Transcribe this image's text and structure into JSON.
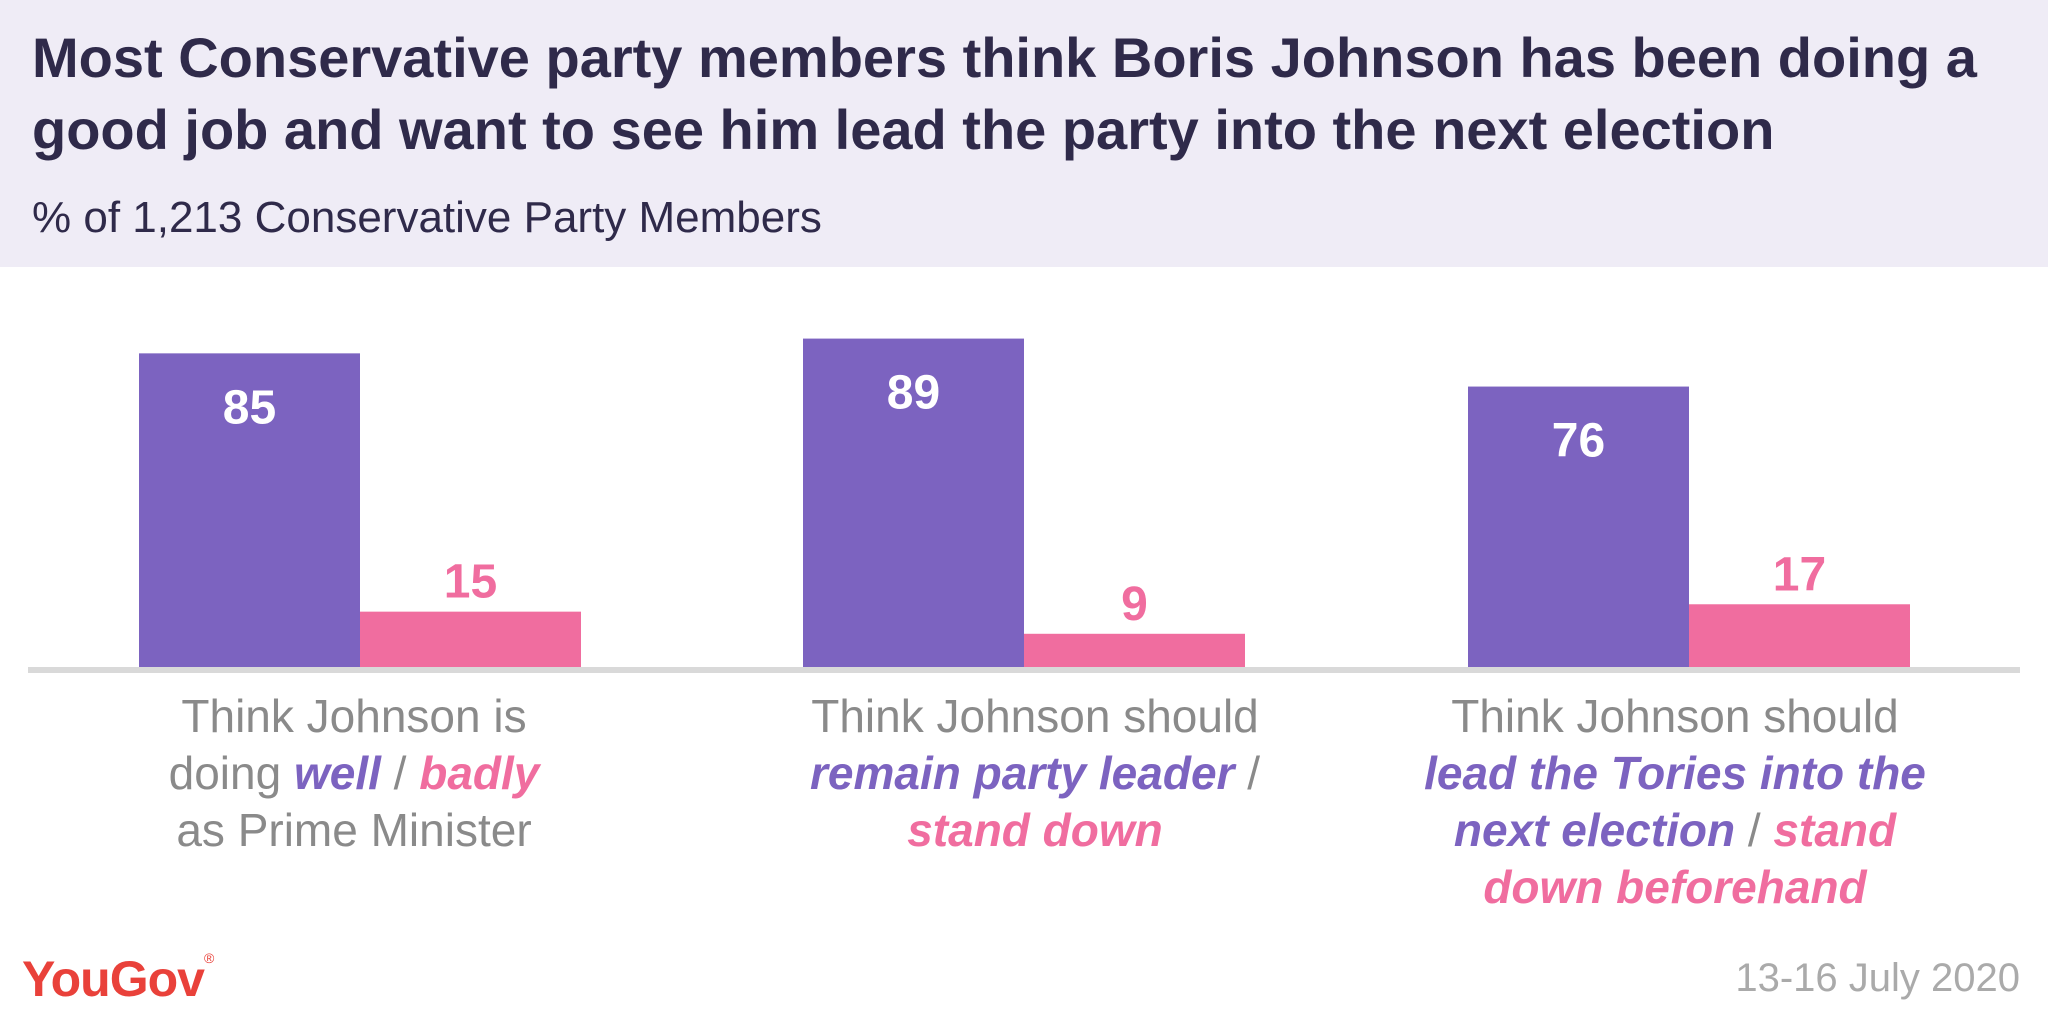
{
  "header": {
    "title": "Most Conservative party members think Boris Johnson has been doing a good job and want to see him lead the party into the next election",
    "subtitle": "% of 1,213 Conservative Party Members"
  },
  "chart_data": {
    "type": "bar",
    "title": "Most Conservative party members think Boris Johnson has been doing a good job and want to see him lead the party into the next election",
    "subtitle": "% of 1,213 Conservative Party Members",
    "categories": [
      "Think Johnson is doing well / badly as Prime Minister",
      "Think Johnson should remain party leader / stand down",
      "Think Johnson should lead the Tories into the next election / stand down beforehand"
    ],
    "series": [
      {
        "name": "positive",
        "color": "#7c63c0",
        "values": [
          85,
          89,
          76
        ]
      },
      {
        "name": "negative",
        "color": "#f06d9f",
        "values": [
          15,
          9,
          17
        ]
      }
    ],
    "ylim": [
      0,
      100
    ],
    "grid": false,
    "legend": "none"
  },
  "captions": [
    {
      "line1": "Think Johnson is",
      "pre": "doing ",
      "pos": "well",
      "sep": " / ",
      "neg": "badly",
      "line3": "as Prime Minister"
    },
    {
      "line1": "Think Johnson should",
      "pos": "remain party leader",
      "sep": " /",
      "neg": "stand down"
    },
    {
      "line1": "Think Johnson should",
      "pos_a": "lead the Tories into the",
      "pos_b": "next election",
      "sep": " / ",
      "neg_a": "stand",
      "neg_b": "down beforehand"
    }
  ],
  "footer": {
    "logo": "YouGov",
    "logo_mark": "®",
    "date": "13-16 July 2020"
  },
  "colors": {
    "positive": "#7c63c0",
    "negative": "#f06d9f",
    "axis": "#d9d9d9",
    "label_on_bar": "#ffffff"
  }
}
